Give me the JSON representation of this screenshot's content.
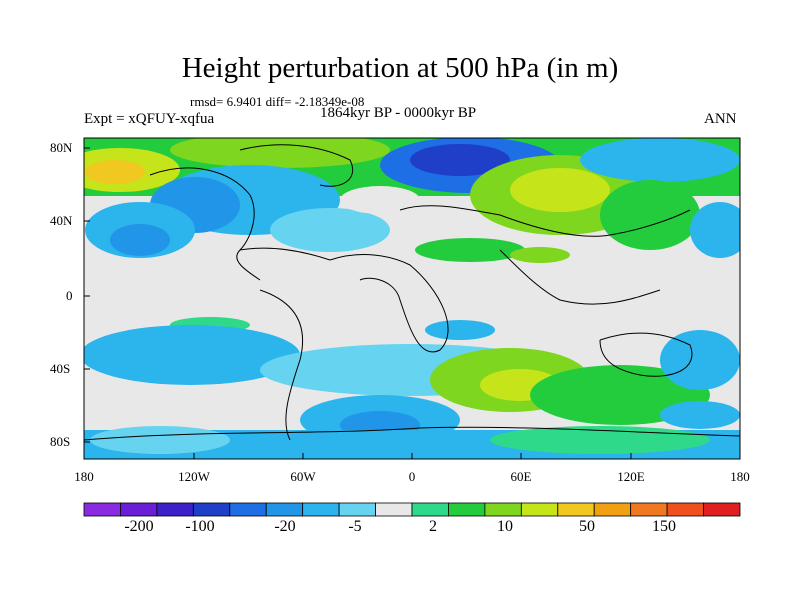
{
  "title": "Height perturbation at 500 hPa (in m)",
  "stats": "rmsd= 6.9401 diff= -2.18349e-08",
  "period": "1864kyr BP - 0000kyr BP",
  "experiment": "Expt = xQFUY-xqfua",
  "season": "ANN",
  "lat_labels": [
    "80N",
    "40N",
    "0",
    "40S",
    "80S"
  ],
  "lon_labels": [
    "180",
    "120W",
    "60W",
    "0",
    "60E",
    "120E",
    "180"
  ],
  "colorbar": {
    "colors": [
      "#8a2be2",
      "#6a1fd6",
      "#3a22c8",
      "#1f3fc8",
      "#1e6ee6",
      "#2196e8",
      "#2cb4ec",
      "#66d4f0",
      "#e8e8e8",
      "#2ed98a",
      "#23cc3c",
      "#7ed61e",
      "#c6e41a",
      "#f0c820",
      "#f0a010",
      "#f07820",
      "#f05020",
      "#e02020"
    ],
    "labels": [
      "-200",
      "-100",
      "-20",
      "-5",
      "2",
      "10",
      "50",
      "150"
    ]
  }
}
